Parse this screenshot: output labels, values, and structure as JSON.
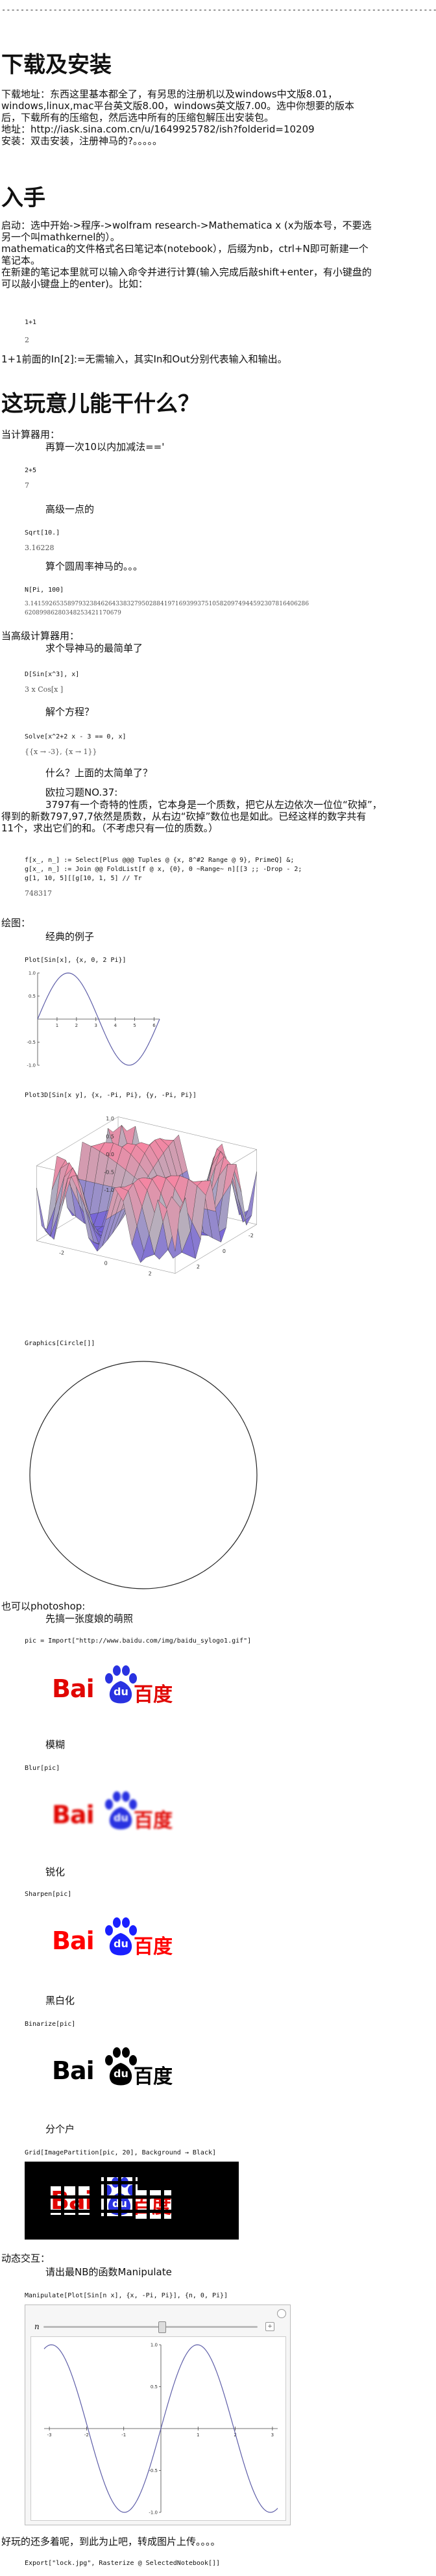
{
  "dashes": "------------------------------------------------------------------------------------------------------------------------",
  "sections": {
    "download_title": "下载及安装",
    "download_lines": [
      "下载地址：东西这里基本都全了，有另思的注册机以及windows中文版8.01，",
      "windows,linux,mac平台英文版8.00，windows英文版7.00。选中你想要的版本",
      "后，下载所有的压缩包，然后选中所有的压缩包解压出安装包。",
      "地址：http://iask.sina.com.cn/u/1649925782/ish?folderid=10209",
      "安装：双击安装，注册神马的?。。。。。"
    ],
    "intro_title": "入手",
    "intro_lines": [
      "启动：选中开始->程序->wolfram research->Mathematica x (x为版本号，不要选",
      "另一个叫mathkernel的）。",
      "mathematica的文件格式名曰笔记本(notebook），后缀为nb，ctrl+N即可新建一个",
      "笔记本。",
      "在新建的笔记本里就可以输入命令并进行计算(输入完成后敲shift+enter，有小键盘的",
      "可以敲小键盘上的enter)。比如："
    ],
    "intro_code": [
      "1+1",
      "2"
    ],
    "intro_after": "1+1前面的In[2]:=无需输入，其实In和Out分别代表输入和输出。",
    "what_title": "这玩意儿能干什么？",
    "calc_label": "当计算器用：",
    "calc_cap1": "再算一次10以内加减法=='",
    "calc_in1": "2+5",
    "calc_out1": "7",
    "calc_cap2": "高级一点的",
    "calc_in2": "Sqrt[10.]",
    "calc_out2": "3.16228",
    "calc_cap3": "算个圆周率神马的。。。",
    "calc_in3": "N[Pi, 100]",
    "calc_out3a": "3.141592653589793238462643383279502884197169399375105820974944592307816406286",
    "calc_out3b": "  62089986280348253421170679",
    "sci_label": "当高级计算器用：",
    "sci_cap1": "求个导神马的最简单了",
    "sci_in1": "D[Sin[x^3], x]",
    "sci_out1": "3 x  Cos[x ]",
    "sci_cap2": "解个方程？",
    "sci_in2": "Solve[x^2+2 x - 3 == 0, x]",
    "sci_out2": "{{x → -3}, {x → 1}}",
    "sci_cap3": "什么？上面的太简单了？",
    "sci_cap4": "欧拉习题NO.37:",
    "sci_para": [
      "3797有一个奇特的性质，它本身是一个质数，把它从左边依次一位位“砍掉”，",
      "得到的新数797,97,7依然是质数，从右边“砍掉”数位也是如此。已经这样的数字共有",
      "11个，求出它们的和。（不考虑只有一位的质数。）"
    ],
    "sci_in3a": "f[x_, n_] := Select[Plus @@@ Tuples @ {x, 8^#2 Range @ 9}, PrimeQ] &;",
    "sci_in3b": "g[x_, n_] := Join @@ FoldList[f @ x, {0}, 0 ~Range~ n][[3 ;; -Drop - 2;",
    "sci_in3c": "g[1, 10, 5][[g[10, 1, 5] // Tr",
    "sci_out3": "748317",
    "plot_label": "绘图：",
    "plot_cap1": "经典的例子",
    "plot_in1": "Plot[Sin[x], {x, 0, 2 Pi}]",
    "plot_in2": "Plot3D[Sin[x y], {x, -Pi, Pi}, {y, -Pi, Pi}]",
    "plot_in3": "Graphics[Circle[]]",
    "ps_label": "也可以photoshop:",
    "ps_cap1": "先搞一张度娘的萌照",
    "ps_in1": "pic = Import[\"http://www.baidu.com/img/baidu_sylogo1.gif\"]",
    "ps_cap2": "模糊",
    "ps_in2": "Blur[pic]",
    "ps_cap3": "锐化",
    "ps_in3": "Sharpen[pic]",
    "ps_cap4": "黑白化",
    "ps_in4": "Binarize[pic]",
    "ps_cap5": "分个户",
    "ps_in5": "Grid[ImagePartition[pic, 20], Background → Black]",
    "dyn_label": "动态交互：",
    "dyn_cap1": "请出最NB的函数Manipulate",
    "dyn_in1": "Manipulate[Plot[Sin[n x], {x, -Pi, Pi}], {n, 0, Pi}]",
    "dyn_slider_label": "n",
    "share_line": "好玩的还多着呢，到此为止吧，转成图片上传。。。。",
    "share_code": "Export[\"lock.jpg\", Rasterize @ SelectedNotebook[]]"
  },
  "logo": {
    "bai": "Bai",
    "du": "du",
    "baidu_cn": "百度",
    "red": "#e10602",
    "blue": "#2932e1"
  },
  "plot2d": {
    "ticks_x": [
      "1",
      "2",
      "3",
      "4",
      "5",
      "6"
    ],
    "ticks_y": [
      "1.0",
      "0.5",
      "-0.5",
      "-1.0"
    ]
  },
  "plot3d": {
    "ticks_y": [
      "1.0",
      "0.5",
      "0.0",
      "-0.5",
      "-1.0"
    ],
    "ticks_x": [
      "-2",
      "0",
      "2"
    ],
    "ticks_z": [
      "-2",
      "0",
      "2"
    ]
  },
  "manip": {
    "ticks_x": [
      "-3",
      "-2",
      "-1",
      "1",
      "2",
      "3"
    ],
    "ticks_y": [
      "1.0",
      "0.5",
      "-0.5",
      "-1.0"
    ]
  },
  "chart_data": [
    {
      "type": "line",
      "title": "",
      "x_range": [
        0,
        6.283
      ],
      "ylim": [
        -1,
        1
      ],
      "series": [
        {
          "name": "",
          "function": "sin(x)"
        }
      ],
      "xlabel": "",
      "ylabel": ""
    },
    {
      "type": "line",
      "title": "",
      "x_range": [
        -3.1416,
        3.1416
      ],
      "ylim": [
        -1,
        1
      ],
      "series": [
        {
          "name": "",
          "function": "sin(n x)"
        }
      ],
      "xlabel": "",
      "ylabel": ""
    }
  ]
}
